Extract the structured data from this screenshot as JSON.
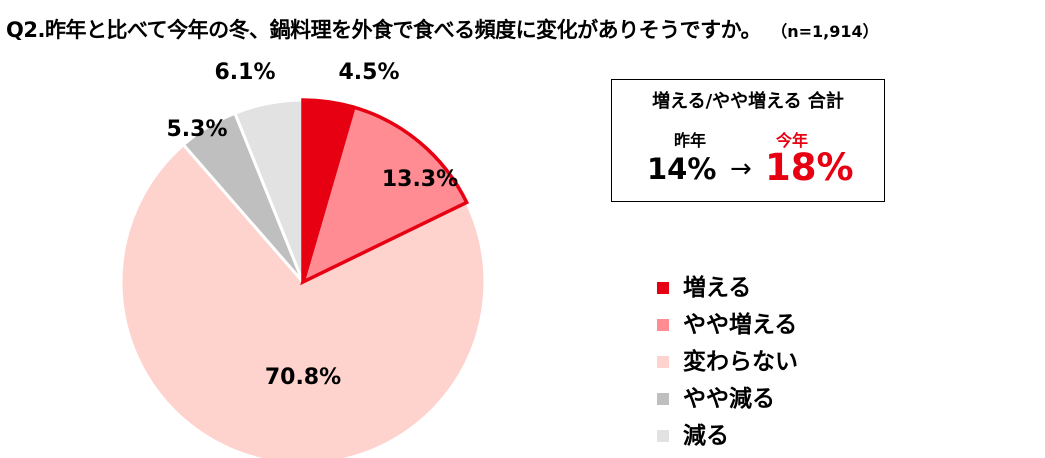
{
  "title": "Q2.昨年と比べて今年の冬、鍋料理を外食で食べる頻度に変化がありそうですか。",
  "sample": "（n=1,914）",
  "summary": {
    "heading": "増える/やや増える 合計",
    "last_year_label": "昨年",
    "this_year_label": "今年",
    "last_year_value": "14%",
    "arrow": "→",
    "this_year_value": "18%"
  },
  "chart_data": {
    "type": "pie",
    "slices": [
      {
        "label": "増える",
        "value": 4.5,
        "display": "4.5%",
        "color": "#e60012",
        "highlight": true
      },
      {
        "label": "やや増える",
        "value": 13.3,
        "display": "13.3%",
        "color": "#ff8b93",
        "highlight": true
      },
      {
        "label": "変わらない",
        "value": 70.8,
        "display": "70.8%",
        "color": "#fed3ce",
        "highlight": false
      },
      {
        "label": "やや減る",
        "value": 5.3,
        "display": "5.3%",
        "color": "#bfbfbf",
        "highlight": false
      },
      {
        "label": "減る",
        "value": 6.1,
        "display": "6.1%",
        "color": "#e2e2e2",
        "highlight": false
      }
    ],
    "highlight_outline_color": "#e60012",
    "legend_position": "right"
  }
}
